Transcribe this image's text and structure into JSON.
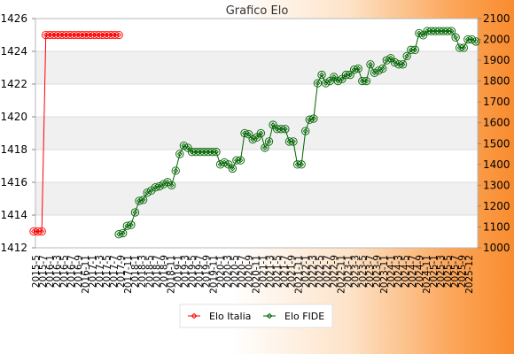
{
  "chart_data": {
    "type": "line",
    "title": "Grafico Elo",
    "grid": true,
    "legend_position": "bottom-center",
    "y_left": {
      "ylim": [
        1412,
        1426
      ],
      "ticks": [
        1412,
        1414,
        1416,
        1418,
        1420,
        1422,
        1424,
        1426
      ]
    },
    "y_right": {
      "ylim": [
        1000,
        2100
      ],
      "ticks": [
        1000,
        1100,
        1200,
        1300,
        1400,
        1500,
        1600,
        1700,
        1800,
        1900,
        2000,
        2100
      ]
    },
    "colors": {
      "italia": "#ff0000",
      "fide": "#006400",
      "bands": "#f0f0f0"
    },
    "x_tick_labels": [
      "2015-5",
      "2015-7",
      "2016-1",
      "2016-3",
      "2016-5",
      "2016-7",
      "2016-9",
      "2016-11",
      "2017-1",
      "2017-3",
      "2017-5",
      "2017-7",
      "2017-9",
      "2017-11",
      "2018-1",
      "2018-3",
      "2018-5",
      "2018-7",
      "2018-9",
      "2018-11",
      "2019-1",
      "2019-3",
      "2019-5",
      "2019-7",
      "2019-9",
      "2019-11",
      "2020-1",
      "2020-3",
      "2020-5",
      "2020-7",
      "2020-9",
      "2020-11",
      "2021-1",
      "2021-3",
      "2021-5",
      "2021-7",
      "2021-9",
      "2021-11",
      "2022-1",
      "2022-3",
      "2022-5",
      "2022-7",
      "2022-9",
      "2022-11",
      "2023-1",
      "2023-3",
      "2023-5",
      "2023-7",
      "2023-9",
      "2023-11",
      "2024-1",
      "2024-3",
      "2024-5",
      "2024-7",
      "2024-9",
      "2024-11",
      "2025-1",
      "2025-3",
      "2025-5",
      "2025-7",
      "2025-9",
      "2025-12"
    ],
    "series": [
      {
        "name": "Elo Italia",
        "axis": "left",
        "marker": "diamond",
        "values": [
          [
            0,
            1413
          ],
          [
            1,
            1413
          ],
          [
            2,
            1413
          ],
          [
            3,
            1425
          ],
          [
            4,
            1425
          ],
          [
            5,
            1425
          ],
          [
            6,
            1425
          ],
          [
            7,
            1425
          ],
          [
            8,
            1425
          ],
          [
            9,
            1425
          ],
          [
            10,
            1425
          ],
          [
            11,
            1425
          ],
          [
            12,
            1425
          ],
          [
            13,
            1425
          ],
          [
            14,
            1425
          ],
          [
            15,
            1425
          ],
          [
            16,
            1425
          ],
          [
            17,
            1425
          ],
          [
            18,
            1425
          ],
          [
            19,
            1425
          ],
          [
            20,
            1425
          ],
          [
            21,
            1425
          ]
        ]
      },
      {
        "name": "Elo FIDE",
        "axis": "right",
        "marker": "diamond",
        "values": [
          [
            21,
            1065
          ],
          [
            22,
            1070
          ],
          [
            23,
            1105
          ],
          [
            24,
            1110
          ],
          [
            25,
            1170
          ],
          [
            26,
            1225
          ],
          [
            27,
            1230
          ],
          [
            28,
            1265
          ],
          [
            29,
            1275
          ],
          [
            30,
            1290
          ],
          [
            31,
            1295
          ],
          [
            32,
            1305
          ],
          [
            33,
            1315
          ],
          [
            34,
            1300
          ],
          [
            35,
            1370
          ],
          [
            36,
            1450
          ],
          [
            37,
            1490
          ],
          [
            38,
            1480
          ],
          [
            39,
            1460
          ],
          [
            40,
            1460
          ],
          [
            41,
            1460
          ],
          [
            42,
            1460
          ],
          [
            43,
            1460
          ],
          [
            44,
            1460
          ],
          [
            45,
            1460
          ],
          [
            46,
            1400
          ],
          [
            47,
            1410
          ],
          [
            48,
            1400
          ],
          [
            49,
            1380
          ],
          [
            50,
            1420
          ],
          [
            51,
            1420
          ],
          [
            52,
            1550
          ],
          [
            53,
            1545
          ],
          [
            54,
            1520
          ],
          [
            55,
            1530
          ],
          [
            56,
            1550
          ],
          [
            57,
            1480
          ],
          [
            58,
            1510
          ],
          [
            59,
            1590
          ],
          [
            60,
            1570
          ],
          [
            61,
            1570
          ],
          [
            62,
            1570
          ],
          [
            63,
            1510
          ],
          [
            64,
            1510
          ],
          [
            65,
            1400
          ],
          [
            66,
            1400
          ],
          [
            67,
            1560
          ],
          [
            68,
            1615
          ],
          [
            69,
            1620
          ],
          [
            70,
            1790
          ],
          [
            71,
            1830
          ],
          [
            72,
            1790
          ],
          [
            73,
            1800
          ],
          [
            74,
            1820
          ],
          [
            75,
            1800
          ],
          [
            76,
            1810
          ],
          [
            77,
            1830
          ],
          [
            78,
            1830
          ],
          [
            79,
            1855
          ],
          [
            80,
            1860
          ],
          [
            81,
            1800
          ],
          [
            82,
            1800
          ],
          [
            83,
            1880
          ],
          [
            84,
            1840
          ],
          [
            85,
            1850
          ],
          [
            86,
            1860
          ],
          [
            87,
            1900
          ],
          [
            88,
            1910
          ],
          [
            89,
            1890
          ],
          [
            90,
            1880
          ],
          [
            91,
            1880
          ],
          [
            92,
            1920
          ],
          [
            93,
            1950
          ],
          [
            94,
            1950
          ],
          [
            95,
            2030
          ],
          [
            96,
            2020
          ],
          [
            97,
            2040
          ],
          [
            98,
            2040
          ],
          [
            99,
            2040
          ],
          [
            100,
            2040
          ],
          [
            101,
            2040
          ],
          [
            102,
            2040
          ],
          [
            103,
            2040
          ],
          [
            104,
            2010
          ],
          [
            105,
            1960
          ],
          [
            106,
            1960
          ],
          [
            107,
            2000
          ],
          [
            108,
            2000
          ],
          [
            109,
            1990
          ]
        ]
      }
    ]
  }
}
